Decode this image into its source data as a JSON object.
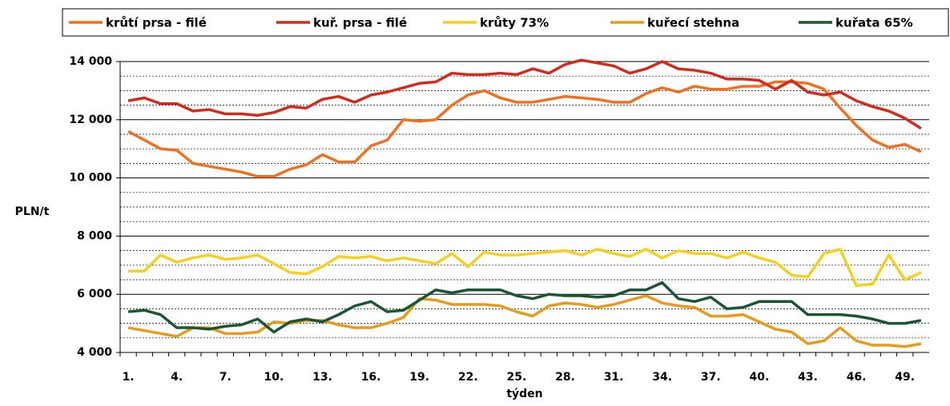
{
  "chart_data": {
    "type": "line",
    "ylabel": "PLN/t",
    "xlabel": "týden",
    "categories": [
      "1.",
      null,
      null,
      "4.",
      null,
      null,
      "7.",
      null,
      null,
      "10.",
      null,
      null,
      "13.",
      null,
      null,
      "16.",
      null,
      null,
      "19.",
      null,
      null,
      "22.",
      null,
      null,
      "25.",
      null,
      null,
      "28.",
      null,
      null,
      "31.",
      null,
      null,
      "34.",
      null,
      null,
      "37.",
      null,
      null,
      "40.",
      null,
      null,
      "43.",
      null,
      null,
      "46.",
      null,
      null,
      "49.",
      null
    ],
    "ylim": [
      4000,
      14000
    ],
    "yticks": [
      {
        "value": 4000,
        "label": "4 000"
      },
      {
        "value": 6000,
        "label": "6 000"
      },
      {
        "value": 8000,
        "label": "8 000"
      },
      {
        "value": 10000,
        "label": "10 000"
      },
      {
        "value": 12000,
        "label": "12 000"
      },
      {
        "value": 14000,
        "label": "14 000"
      }
    ],
    "grid": true,
    "legend": "top",
    "series": [
      {
        "name": "krůtí prsa - filé",
        "color": "#f07020",
        "values": [
          11600,
          11300,
          11000,
          10950,
          10500,
          10400,
          10300,
          10200,
          10050,
          10050,
          10300,
          10450,
          10800,
          10550,
          10550,
          11100,
          11300,
          12000,
          11950,
          12000,
          12500,
          12850,
          13000,
          12750,
          12600,
          12600,
          12700,
          12800,
          12750,
          12700,
          12600,
          12600,
          12900,
          13100,
          12950,
          13150,
          13050,
          13050,
          13150,
          13150,
          13300,
          13300,
          13250,
          13050,
          12400,
          11800,
          11300,
          11050,
          11150,
          10900
        ]
      },
      {
        "name": "kuř. prsa - filé",
        "color": "#d42a1c",
        "values": [
          12650,
          12750,
          12550,
          12550,
          12300,
          12350,
          12200,
          12200,
          12150,
          12250,
          12450,
          12400,
          12700,
          12800,
          12600,
          12850,
          12950,
          13100,
          13250,
          13300,
          13600,
          13550,
          13550,
          13600,
          13550,
          13750,
          13600,
          13900,
          14050,
          13950,
          13850,
          13600,
          13750,
          14000,
          13750,
          13700,
          13600,
          13400,
          13400,
          13350,
          13050,
          13350,
          12950,
          12850,
          12950,
          12650,
          12450,
          12300,
          12050,
          11700
        ]
      },
      {
        "name": "krůty 73%",
        "color": "#f5d020",
        "values": [
          6800,
          6800,
          7350,
          7100,
          7250,
          7350,
          7200,
          7250,
          7350,
          7050,
          6750,
          6700,
          6950,
          7300,
          7250,
          7300,
          7150,
          7250,
          7150,
          7050,
          7400,
          6950,
          7450,
          7350,
          7350,
          7400,
          7450,
          7500,
          7350,
          7550,
          7400,
          7300,
          7550,
          7250,
          7500,
          7400,
          7400,
          7250,
          7450,
          7250,
          7100,
          6650,
          6600,
          7400,
          7550,
          6300,
          6350,
          7350,
          6500,
          6750
        ]
      },
      {
        "name": "kuřecí stehna",
        "color": "#e89a1a",
        "values": [
          4850,
          4750,
          4650,
          4550,
          4850,
          4850,
          4650,
          4650,
          4700,
          5050,
          5000,
          5100,
          5100,
          4950,
          4850,
          4850,
          5000,
          5200,
          5850,
          5800,
          5650,
          5650,
          5650,
          5600,
          5400,
          5250,
          5600,
          5700,
          5650,
          5550,
          5650,
          5800,
          5950,
          5700,
          5600,
          5550,
          5250,
          5250,
          5300,
          5050,
          4800,
          4700,
          4300,
          4400,
          4850,
          4400,
          4250,
          4250,
          4200,
          4300
        ]
      },
      {
        "name": "kuřata 65%",
        "color": "#1a5632",
        "values": [
          5400,
          5450,
          5300,
          4850,
          4850,
          4800,
          4900,
          4950,
          5150,
          4700,
          5050,
          5150,
          5050,
          5300,
          5600,
          5750,
          5400,
          5450,
          5800,
          6150,
          6050,
          6150,
          6150,
          6150,
          5950,
          5850,
          6000,
          5950,
          5950,
          5900,
          5950,
          6150,
          6150,
          6400,
          5850,
          5750,
          5900,
          5500,
          5550,
          5750,
          5750,
          5750,
          5300,
          5300,
          5300,
          5250,
          5150,
          5000,
          5000,
          5100
        ]
      }
    ]
  }
}
